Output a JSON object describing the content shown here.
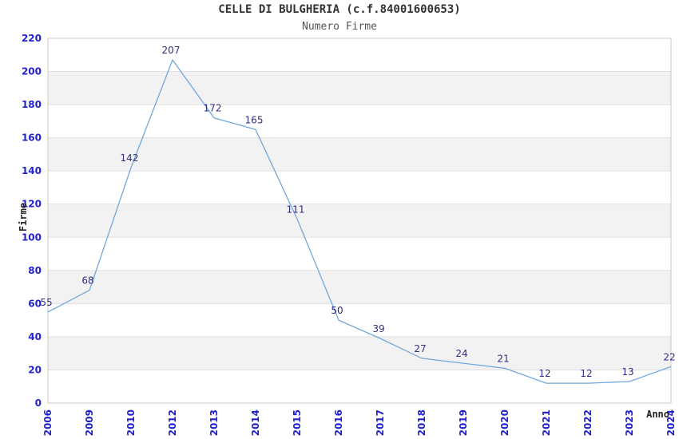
{
  "header": {
    "title": "CELLE DI BULGHERIA (c.f.84001600653)",
    "subtitle": "Numero Firme"
  },
  "chart_data": {
    "type": "line",
    "title": "CELLE DI BULGHERIA (c.f.84001600653)",
    "subtitle": "Numero Firme",
    "xlabel": "Anno",
    "ylabel": "Firme",
    "categories": [
      "2006",
      "2009",
      "2010",
      "2012",
      "2013",
      "2014",
      "2015",
      "2016",
      "2017",
      "2018",
      "2019",
      "2020",
      "2021",
      "2022",
      "2023",
      "2024"
    ],
    "values": [
      55,
      68,
      142,
      207,
      172,
      165,
      111,
      50,
      39,
      27,
      24,
      21,
      12,
      12,
      13,
      22
    ],
    "ylim": [
      0,
      220
    ],
    "ytick_step": 20,
    "yticks": [
      0,
      20,
      40,
      60,
      80,
      100,
      120,
      140,
      160,
      180,
      200,
      220
    ],
    "grid": true,
    "legend": "none",
    "colors": {
      "line": "#6fa8dc",
      "data_label": "#2e2e85",
      "tick_label": "#2222cd",
      "axis_title": "#222222",
      "band_alt": "#f2f2f2",
      "band_base": "#ffffff",
      "gridline": "#e0e0e0",
      "plot_border": "#c8c8c8",
      "title": "#333333",
      "subtitle": "#555555"
    }
  }
}
